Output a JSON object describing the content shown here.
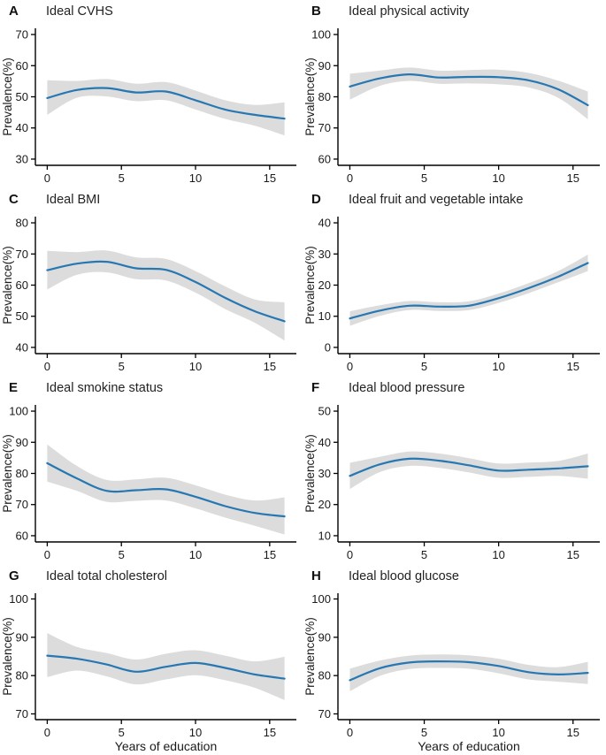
{
  "figure": {
    "background": "#ffffff",
    "line_color": "#2677b2",
    "band_color": "#dcdcdc",
    "axis_color": "#000000",
    "text_color": "#1a1a1a"
  },
  "chart_data": [
    {
      "panel": "A",
      "title": "Ideal CVHS",
      "type": "line",
      "xlabel": "",
      "ylabel": "Prevalence(%)",
      "xlim": [
        0,
        16
      ],
      "ylim": [
        30,
        70
      ],
      "xticks": [
        0,
        5,
        10,
        15
      ],
      "yticks": [
        30,
        40,
        50,
        60,
        70
      ],
      "x": [
        0,
        2,
        4,
        6,
        8,
        10,
        12,
        14,
        16
      ],
      "y": [
        49.6,
        52.2,
        52.8,
        51.4,
        51.7,
        48.9,
        45.9,
        44.2,
        43.0
      ],
      "lower": [
        44.2,
        49.7,
        50.1,
        48.6,
        48.9,
        45.9,
        42.9,
        40.7,
        37.6
      ],
      "upper": [
        55.3,
        55.1,
        55.7,
        54.2,
        54.7,
        52.0,
        48.9,
        47.4,
        48.2
      ]
    },
    {
      "panel": "B",
      "title": "Ideal physical activity",
      "type": "line",
      "xlabel": "",
      "ylabel": "Prevalence(%)",
      "xlim": [
        0,
        16
      ],
      "ylim": [
        60,
        100
      ],
      "xticks": [
        0,
        5,
        10,
        15
      ],
      "yticks": [
        60,
        70,
        80,
        90,
        100
      ],
      "x": [
        0,
        2,
        4,
        6,
        8,
        10,
        12,
        14,
        16
      ],
      "y": [
        83.3,
        85.9,
        87.2,
        86.2,
        86.4,
        86.3,
        85.3,
        82.4,
        77.3
      ],
      "lower": [
        79.1,
        83.5,
        85.1,
        84.2,
        84.3,
        84.0,
        83.0,
        79.7,
        72.8
      ],
      "upper": [
        87.4,
        88.4,
        89.4,
        88.4,
        88.6,
        88.7,
        87.7,
        85.2,
        81.7
      ]
    },
    {
      "panel": "C",
      "title": "Ideal BMI",
      "type": "line",
      "xlabel": "",
      "ylabel": "Prevalence(%)",
      "xlim": [
        0,
        16
      ],
      "ylim": [
        40,
        80
      ],
      "xticks": [
        0,
        5,
        10,
        15
      ],
      "yticks": [
        40,
        50,
        60,
        70,
        80
      ],
      "x": [
        0,
        2,
        4,
        6,
        8,
        10,
        12,
        14,
        16
      ],
      "y": [
        64.8,
        66.9,
        67.5,
        65.4,
        64.9,
        61.0,
        55.9,
        51.6,
        48.4
      ],
      "lower": [
        58.6,
        63.3,
        64.1,
        61.9,
        61.5,
        57.6,
        52.3,
        47.9,
        42.2
      ],
      "upper": [
        71.0,
        70.6,
        71.1,
        68.9,
        68.4,
        64.5,
        59.6,
        55.4,
        54.5
      ]
    },
    {
      "panel": "D",
      "title": "Ideal fruit and vegetable intake",
      "type": "line",
      "xlabel": "",
      "ylabel": "Prevalence(%)",
      "xlim": [
        0,
        16
      ],
      "ylim": [
        0,
        40
      ],
      "xticks": [
        0,
        5,
        10,
        15
      ],
      "yticks": [
        0,
        10,
        20,
        30,
        40
      ],
      "x": [
        0,
        2,
        4,
        6,
        8,
        10,
        12,
        14,
        16
      ],
      "y": [
        9.3,
        11.8,
        13.4,
        13.1,
        13.4,
        15.8,
        19.0,
        22.7,
        27.1
      ],
      "lower": [
        6.9,
        10.1,
        12.0,
        11.7,
        12.0,
        14.3,
        17.4,
        20.9,
        24.5
      ],
      "upper": [
        11.6,
        13.5,
        14.9,
        14.5,
        14.8,
        17.3,
        20.6,
        24.5,
        29.8
      ]
    },
    {
      "panel": "E",
      "title": "Ideal smokine status",
      "type": "line",
      "xlabel": "",
      "ylabel": "Prevalence(%)",
      "xlim": [
        0,
        16
      ],
      "ylim": [
        60,
        100
      ],
      "xticks": [
        0,
        5,
        10,
        15
      ],
      "yticks": [
        60,
        70,
        80,
        90,
        100
      ],
      "x": [
        0,
        2,
        4,
        6,
        8,
        10,
        12,
        14,
        16
      ],
      "y": [
        83.3,
        78.4,
        74.4,
        74.6,
        74.9,
        72.5,
        69.5,
        67.3,
        66.2
      ],
      "lower": [
        77.4,
        74.4,
        70.9,
        71.2,
        71.3,
        68.8,
        65.8,
        63.2,
        60.4
      ],
      "upper": [
        89.3,
        82.4,
        77.9,
        78.1,
        78.6,
        76.2,
        73.2,
        71.3,
        72.3
      ]
    },
    {
      "panel": "F",
      "title": "Ideal blood pressure",
      "type": "line",
      "xlabel": "",
      "ylabel": "Prevalence(%)",
      "xlim": [
        0,
        16
      ],
      "ylim": [
        10,
        50
      ],
      "xticks": [
        0,
        5,
        10,
        15
      ],
      "yticks": [
        10,
        20,
        30,
        40,
        50
      ],
      "x": [
        0,
        2,
        4,
        6,
        8,
        10,
        12,
        14,
        16
      ],
      "y": [
        29.2,
        32.9,
        34.7,
        34.1,
        32.6,
        30.9,
        31.2,
        31.6,
        32.3
      ],
      "lower": [
        25.0,
        30.4,
        32.4,
        31.8,
        30.3,
        28.6,
        28.9,
        29.2,
        28.3
      ],
      "upper": [
        33.4,
        35.3,
        37.0,
        36.4,
        34.9,
        33.2,
        33.5,
        34.0,
        36.4
      ]
    },
    {
      "panel": "G",
      "title": "Ideal total cholesterol",
      "type": "line",
      "xlabel": "Years of education",
      "ylabel": "Prevalence(%)",
      "xlim": [
        0,
        16
      ],
      "ylim": [
        70,
        100
      ],
      "xticks": [
        0,
        5,
        10,
        15
      ],
      "yticks": [
        70,
        80,
        90,
        100
      ],
      "x": [
        0,
        2,
        4,
        6,
        8,
        10,
        12,
        14,
        16
      ],
      "y": [
        85.2,
        84.4,
        82.9,
        81.0,
        82.3,
        83.3,
        82.0,
        80.3,
        79.2
      ],
      "lower": [
        79.6,
        81.3,
        79.8,
        77.7,
        79.0,
        80.1,
        78.8,
        76.8,
        73.6
      ],
      "upper": [
        91.1,
        87.5,
        85.9,
        84.2,
        85.7,
        86.6,
        85.2,
        83.7,
        84.9
      ]
    },
    {
      "panel": "H",
      "title": "Ideal blood glucose",
      "type": "line",
      "xlabel": "Years of education",
      "ylabel": "Prevalence(%)",
      "xlim": [
        0,
        16
      ],
      "ylim": [
        70,
        100
      ],
      "xticks": [
        0,
        5,
        10,
        15
      ],
      "yticks": [
        70,
        80,
        90,
        100
      ],
      "x": [
        0,
        2,
        4,
        6,
        8,
        10,
        12,
        14,
        16
      ],
      "y": [
        78.8,
        81.9,
        83.4,
        83.7,
        83.5,
        82.5,
        80.9,
        80.3,
        80.7
      ],
      "lower": [
        75.9,
        79.9,
        81.7,
        82.0,
        81.8,
        80.6,
        79.0,
        78.4,
        77.8
      ],
      "upper": [
        81.8,
        83.9,
        85.2,
        85.5,
        85.3,
        84.4,
        82.8,
        82.2,
        83.6
      ]
    }
  ]
}
